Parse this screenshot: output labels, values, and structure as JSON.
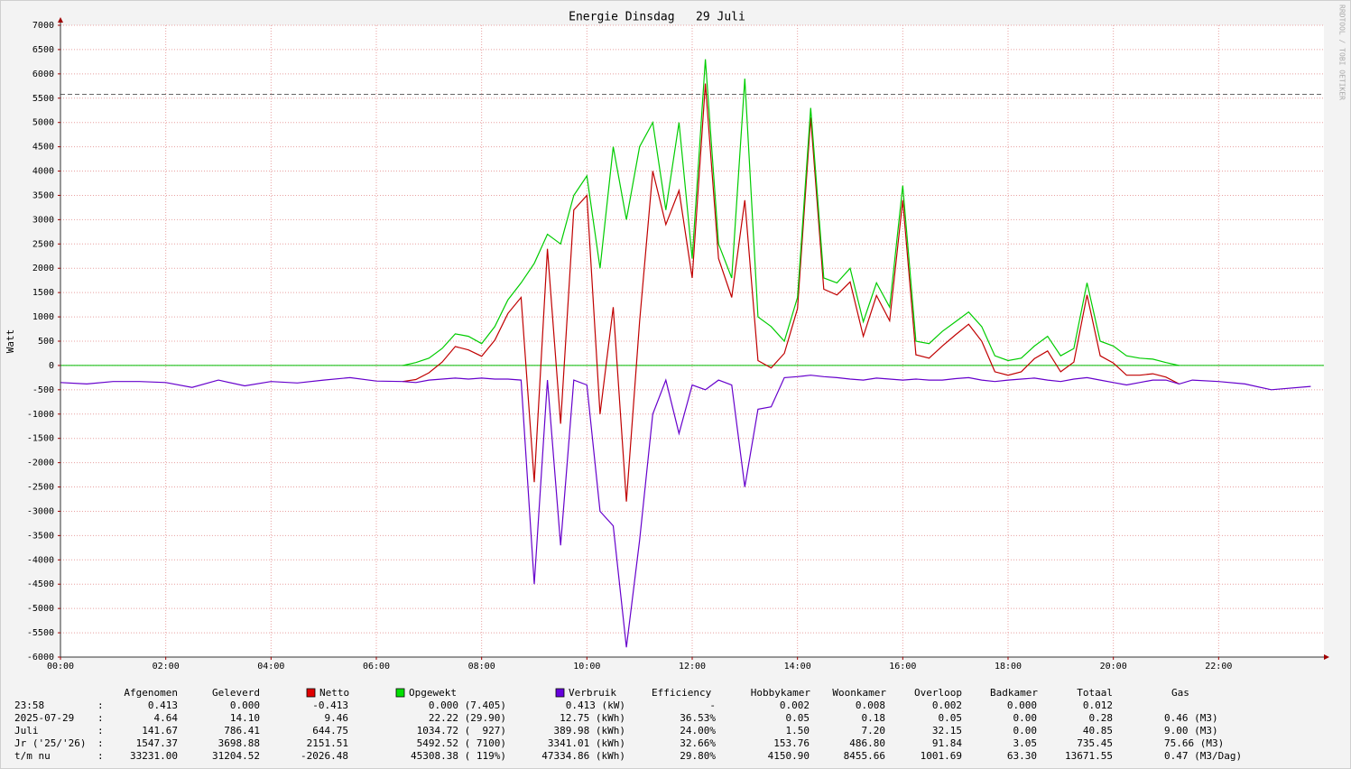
{
  "chart_data": {
    "type": "line",
    "title": "Energie Dinsdag   29 Juli",
    "y_label": "Watt",
    "side_text": "RRDTOOL / TOBI OETIKER",
    "x": [
      0,
      0.5,
      1,
      1.5,
      2,
      2.5,
      3,
      3.5,
      4,
      4.5,
      5,
      5.5,
      6,
      6.5,
      6.75,
      7,
      7.25,
      7.5,
      7.75,
      8,
      8.25,
      8.5,
      8.75,
      9,
      9.25,
      9.5,
      9.75,
      10,
      10.25,
      10.5,
      10.75,
      11,
      11.25,
      11.5,
      11.75,
      12,
      12.25,
      12.5,
      12.75,
      13,
      13.25,
      13.5,
      13.75,
      14,
      14.25,
      14.5,
      14.75,
      15,
      15.25,
      15.5,
      15.75,
      16,
      16.25,
      16.5,
      16.75,
      17,
      17.25,
      17.5,
      17.75,
      18,
      18.25,
      18.5,
      18.75,
      19,
      19.25,
      19.5,
      19.75,
      20,
      20.25,
      20.5,
      20.75,
      21,
      21.25,
      21.5,
      22,
      22.5,
      23,
      23.75
    ],
    "series": [
      {
        "name": "Netto",
        "color": "#c00000",
        "legend_color": "#e00000",
        "values": [
          null,
          null,
          null,
          null,
          null,
          null,
          null,
          null,
          null,
          null,
          null,
          null,
          null,
          -330,
          -290,
          -150,
          70,
          390,
          320,
          190,
          520,
          1070,
          1400,
          -2400,
          2400,
          -1200,
          3200,
          3500,
          -1000,
          1200,
          -2800,
          900,
          4000,
          2900,
          3600,
          1800,
          5800,
          2200,
          1400,
          3400,
          100,
          -50,
          250,
          1170,
          5100,
          1570,
          1450,
          1720,
          600,
          1440,
          920,
          3400,
          220,
          150,
          400,
          630,
          850,
          500,
          -130,
          -200,
          -130,
          140,
          300,
          -130,
          70,
          1450,
          200,
          50,
          -200,
          -200,
          -170,
          -240,
          -380,
          null,
          null,
          null,
          null,
          null
        ]
      },
      {
        "name": "Opgewekt",
        "color": "#00cc00",
        "legend_color": "#00e000",
        "values": [
          null,
          null,
          null,
          null,
          null,
          null,
          null,
          null,
          null,
          null,
          null,
          null,
          null,
          0,
          60,
          150,
          350,
          650,
          600,
          450,
          800,
          1350,
          1700,
          2100,
          2700,
          2500,
          3500,
          3900,
          2000,
          4500,
          3000,
          4500,
          5000,
          3200,
          5000,
          2200,
          6300,
          2500,
          1800,
          5900,
          1000,
          800,
          500,
          1400,
          5300,
          1800,
          1700,
          2000,
          900,
          1700,
          1200,
          3700,
          500,
          450,
          700,
          900,
          1100,
          800,
          200,
          100,
          150,
          400,
          600,
          200,
          350,
          1700,
          500,
          400,
          200,
          150,
          130,
          60,
          0,
          null,
          null,
          null,
          null,
          null
        ]
      },
      {
        "name": "Verbruik",
        "color": "#6600cc",
        "legend_color": "#6600dd",
        "values": [
          -350,
          -380,
          -330,
          -330,
          -350,
          -450,
          -300,
          -420,
          -330,
          -360,
          -300,
          -250,
          -320,
          -330,
          -350,
          -300,
          -280,
          -260,
          -280,
          -260,
          -280,
          -280,
          -300,
          -4500,
          -300,
          -3700,
          -300,
          -400,
          -3000,
          -3300,
          -5800,
          -3600,
          -1000,
          -300,
          -1400,
          -400,
          -500,
          -300,
          -400,
          -2500,
          -900,
          -850,
          -250,
          -230,
          -200,
          -230,
          -250,
          -280,
          -300,
          -260,
          -280,
          -300,
          -280,
          -300,
          -300,
          -270,
          -250,
          -300,
          -330,
          -300,
          -280,
          -260,
          -300,
          -330,
          -280,
          -250,
          -300,
          -350,
          -400,
          -350,
          -300,
          -300,
          -380,
          -300,
          -330,
          -380,
          -500,
          -430
        ]
      }
    ],
    "xlim": [
      0,
      24
    ],
    "xticks": [
      {
        "value": 0,
        "label": "00:00"
      },
      {
        "value": 2,
        "label": "02:00"
      },
      {
        "value": 4,
        "label": "04:00"
      },
      {
        "value": 6,
        "label": "06:00"
      },
      {
        "value": 8,
        "label": "08:00"
      },
      {
        "value": 10,
        "label": "10:00"
      },
      {
        "value": 12,
        "label": "12:00"
      },
      {
        "value": 14,
        "label": "14:00"
      },
      {
        "value": 16,
        "label": "16:00"
      },
      {
        "value": 18,
        "label": "18:00"
      },
      {
        "value": 20,
        "label": "20:00"
      },
      {
        "value": 22,
        "label": "22:00"
      }
    ],
    "ylim": [
      -6000,
      7000
    ],
    "yticks": [
      -6000,
      -5500,
      -5000,
      -4500,
      -4000,
      -3500,
      -3000,
      -2500,
      -2000,
      -1500,
      -1000,
      -500,
      0,
      500,
      1000,
      1500,
      2000,
      2500,
      3000,
      3500,
      4000,
      4500,
      5000,
      5500,
      6000,
      6500,
      7000
    ],
    "reference_line": 5580,
    "grid": true
  },
  "table": {
    "headers": [
      "Afgenomen",
      "Geleverd",
      "Efficiency",
      "Hobbykamer",
      "Woonkamer",
      "Overloop",
      "Badkamer",
      "Totaal",
      "Gas"
    ],
    "rows": [
      [
        "23:58",
        ":",
        "0.413",
        "0.000",
        "-0.413",
        "0.000 (7.405)",
        "0.413 (kW)",
        "-",
        "0.002",
        "0.008",
        "0.002",
        "0.000",
        "0.012"
      ],
      [
        "2025-07-29",
        ":",
        "4.64",
        "14.10",
        "9.46",
        "22.22 (29.90)",
        "12.75 (kWh)",
        "36.53%",
        "0.05",
        "0.18",
        "0.05",
        "0.00",
        "0.28",
        "0.46 (M3)"
      ],
      [
        "Juli",
        ":",
        "141.67",
        "786.41",
        "644.75",
        "1034.72 (  927)",
        "389.98 (kWh)",
        "24.00%",
        "1.50",
        "7.20",
        "32.15",
        "0.00",
        "40.85",
        "9.00 (M3)"
      ],
      [
        "Jr ('25/'26)",
        ":",
        "1547.37",
        "3698.88",
        "2151.51",
        "5492.52 ( 7100)",
        "3341.01 (kWh)",
        "32.66%",
        "153.76",
        "486.80",
        "91.84",
        "3.05",
        "735.45",
        "75.66 (M3)"
      ],
      [
        "t/m nu",
        ":",
        "33231.00",
        "31204.52",
        "-2026.48",
        "45308.38 ( 119%)",
        "47334.86 (kWh)",
        "29.80%",
        "4150.90",
        "8455.66",
        "1001.69",
        "63.30",
        "13671.55",
        "0.47 (M3/Dag)"
      ]
    ]
  }
}
